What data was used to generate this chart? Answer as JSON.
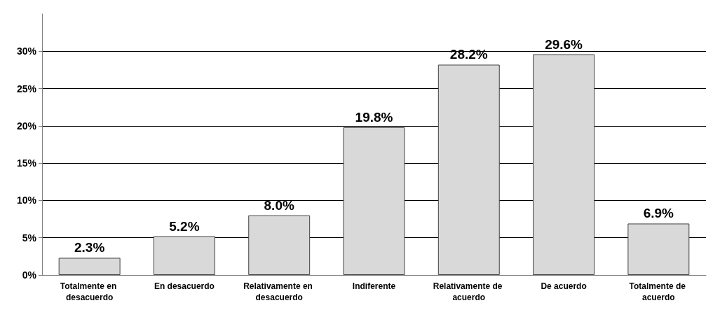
{
  "chart_data": {
    "type": "bar",
    "categories": [
      "Totalmente en desacuerdo",
      "En desacuerdo",
      "Relativamente en desacuerdo",
      "Indiferente",
      "Relativamente de acuerdo",
      "De acuerdo",
      "Totalmente de acuerdo"
    ],
    "values": [
      2.3,
      5.2,
      8.0,
      19.8,
      28.2,
      29.6,
      6.9
    ],
    "value_labels": [
      "2.3%",
      "5.2%",
      "8.0%",
      "19.8%",
      "28.2%",
      "29.6%",
      "6.9%"
    ],
    "color": "#d9d9d9",
    "ylim": [
      0,
      35
    ],
    "yticks": [
      {
        "value": 0,
        "label": "0%"
      },
      {
        "value": 5,
        "label": "5%"
      },
      {
        "value": 10,
        "label": "10%"
      },
      {
        "value": 15,
        "label": "15%"
      },
      {
        "value": 20,
        "label": "20%"
      },
      {
        "value": 25,
        "label": "25%"
      },
      {
        "value": 30,
        "label": "30%"
      }
    ],
    "grid": "y"
  }
}
